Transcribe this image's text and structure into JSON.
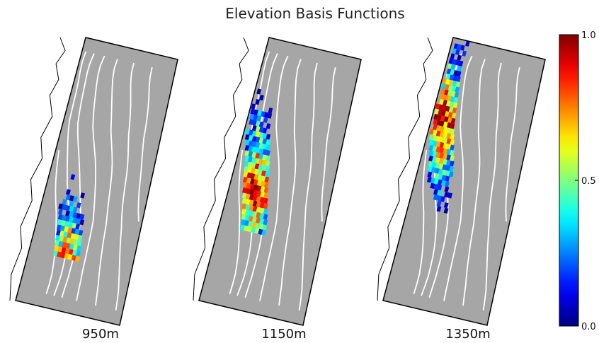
{
  "chart_data": [
    {
      "type": "heatmap",
      "title": "Elevation Basis Functions",
      "panels": [
        {
          "label": "950m",
          "center_elevation_m": 950
        },
        {
          "label": "1150m",
          "center_elevation_m": 1150
        },
        {
          "label": "1350m",
          "center_elevation_m": 1350
        }
      ],
      "colorbar": {
        "colormap": "jet",
        "vmin": 0.0,
        "vmax": 1.0,
        "ticks": [
          {
            "value": 0.0,
            "label": "0.0"
          },
          {
            "value": 0.5,
            "label": "0.5"
          },
          {
            "value": 1.0,
            "label": "1.0"
          }
        ]
      },
      "background_color": "#a6a6a6",
      "contour_color": "#ffffff",
      "outline_color": "#000000"
    }
  ]
}
